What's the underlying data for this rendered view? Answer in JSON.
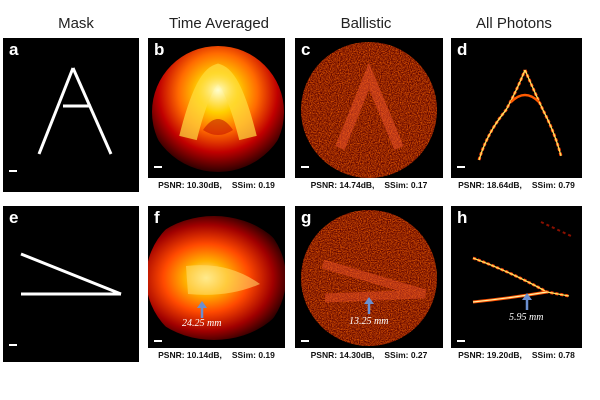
{
  "columns": [
    "Mask",
    "Time Averaged",
    "Ballistic",
    "All Photons"
  ],
  "rows": [
    {
      "panels": [
        {
          "label": "a",
          "metrics": null
        },
        {
          "label": "b",
          "metrics": {
            "psnr_label": "PSNR: 10.30dB,",
            "ssim_label": "SSim: 0.19"
          }
        },
        {
          "label": "c",
          "metrics": {
            "psnr_label": "PSNR: 14.74dB,",
            "ssim_label": "SSim: 0.17"
          }
        },
        {
          "label": "d",
          "metrics": {
            "psnr_label": "PSNR: 18.64dB,",
            "ssim_label": "SSim: 0.79"
          }
        }
      ]
    },
    {
      "panels": [
        {
          "label": "e",
          "metrics": null
        },
        {
          "label": "f",
          "metrics": {
            "psnr_label": "PSNR: 10.14dB,",
            "ssim_label": "SSim: 0.19"
          },
          "distance": "24.25 mm"
        },
        {
          "label": "g",
          "metrics": {
            "psnr_label": "PSNR: 14.30dB,",
            "ssim_label": "SSim: 0.27"
          },
          "distance": "13.25 mm"
        },
        {
          "label": "h",
          "metrics": {
            "psnr_label": "PSNR: 19.20dB,",
            "ssim_label": "SSim: 0.78"
          },
          "distance": "5.95 mm"
        }
      ]
    }
  ],
  "colors": {
    "arrow": "#6b8fd0",
    "hot_core": "#fff6b0",
    "hot_mid": "#ff7a00",
    "hot_edge": "#b00000"
  }
}
